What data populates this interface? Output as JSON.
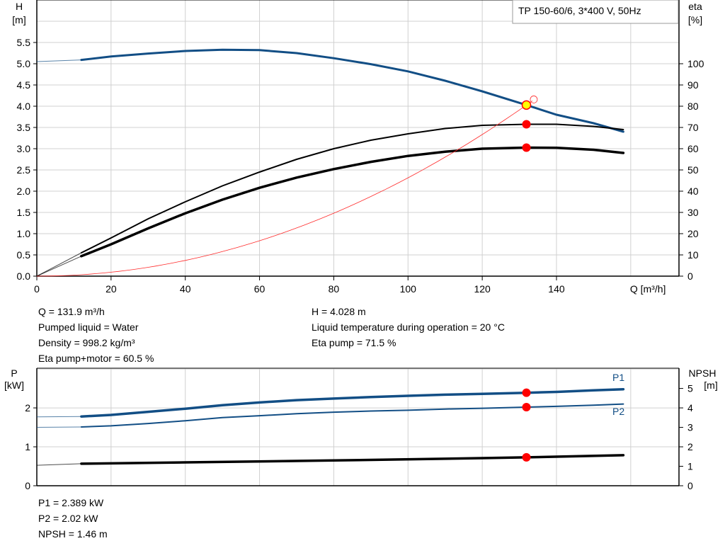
{
  "chart_data": [
    {
      "type": "line",
      "title": "TP 150-60/6, 3*400 V, 50Hz",
      "xlabel": "Q [m³/h]",
      "ylabel_left": [
        "H",
        "[m]"
      ],
      "ylabel_right": [
        "eta",
        "[%]"
      ],
      "xlim": [
        0,
        173
      ],
      "ylim_left": [
        0,
        6.5
      ],
      "ylim_right": [
        0,
        130
      ],
      "xticks": [
        "0",
        "20",
        "40",
        "60",
        "80",
        "100",
        "120",
        "140"
      ],
      "yticks_left": [
        "0.0",
        "0.5",
        "1.0",
        "1.5",
        "2.0",
        "2.5",
        "3.0",
        "3.5",
        "4.0",
        "4.5",
        "5.0",
        "5.5"
      ],
      "yticks_right": [
        "0",
        "10",
        "20",
        "30",
        "40",
        "50",
        "60",
        "70",
        "80",
        "90",
        "100"
      ],
      "grid": true,
      "series": [
        {
          "axis": "left",
          "color": "#124e85",
          "width": 3,
          "x": [
            12,
            20,
            30,
            40,
            50,
            60,
            70,
            80,
            90,
            100,
            110,
            120,
            131.9,
            140,
            150,
            158
          ],
          "y": [
            5.09,
            5.17,
            5.24,
            5.3,
            5.33,
            5.32,
            5.25,
            5.13,
            4.99,
            4.82,
            4.6,
            4.35,
            4.028,
            3.8,
            3.6,
            3.4
          ],
          "lead": {
            "x": [
              0,
              12
            ],
            "y": [
              5.05,
              5.09
            ]
          }
        },
        {
          "axis": "right",
          "color": "#000000",
          "width": 2,
          "x": [
            12,
            20,
            30,
            40,
            50,
            60,
            70,
            80,
            90,
            100,
            110,
            120,
            131.9,
            140,
            150,
            158
          ],
          "y": [
            11,
            18,
            27,
            35,
            42.5,
            49,
            55,
            60,
            64,
            67,
            69.5,
            71,
            71.5,
            71.5,
            70.5,
            69
          ],
          "lead": {
            "x": [
              0,
              12
            ],
            "y": [
              0,
              11
            ]
          }
        },
        {
          "axis": "right",
          "color": "#000000",
          "width": 3.5,
          "x": [
            12,
            20,
            30,
            40,
            50,
            60,
            70,
            80,
            90,
            100,
            110,
            120,
            131.9,
            140,
            150,
            158
          ],
          "y": [
            9.4,
            15,
            22.5,
            29.6,
            36,
            41.6,
            46.4,
            50.4,
            53.8,
            56.6,
            58.6,
            60,
            60.5,
            60.4,
            59.5,
            58
          ],
          "lead": {
            "x": [
              0,
              12
            ],
            "y": [
              0,
              9.4
            ]
          }
        },
        {
          "axis": "left",
          "color": "#ff2a2a",
          "width": 0.8,
          "system_curve_k": 0.0002315,
          "x_end": 133.5
        }
      ],
      "operating_point": {
        "Q": 131.9,
        "H": 4.028,
        "eta_pump": 71.5,
        "eta_total": 60.5
      }
    },
    {
      "type": "line",
      "ylabel_left": [
        "P",
        "[kW]"
      ],
      "ylabel_right": [
        "NPSH",
        "[m]"
      ],
      "xlim": [
        0,
        173
      ],
      "ylim_left": [
        0,
        3.02
      ],
      "ylim_right": [
        0,
        6.04
      ],
      "yticks_left": [
        "0",
        "1",
        "2"
      ],
      "yticks_right": [
        "0",
        "1",
        "2",
        "3",
        "4",
        "5"
      ],
      "grid": true,
      "series": [
        {
          "name": "P1",
          "axis": "left",
          "color": "#124e85",
          "width": 3.5,
          "x": [
            12,
            20,
            30,
            40,
            50,
            60,
            70,
            80,
            90,
            100,
            110,
            120,
            131.9,
            140,
            150,
            158
          ],
          "y": [
            1.78,
            1.82,
            1.9,
            1.98,
            2.07,
            2.14,
            2.2,
            2.24,
            2.28,
            2.31,
            2.34,
            2.36,
            2.389,
            2.41,
            2.45,
            2.48
          ],
          "lead": {
            "x": [
              0,
              12
            ],
            "y": [
              1.77,
              1.78
            ]
          }
        },
        {
          "name": "P2",
          "axis": "left",
          "color": "#124e85",
          "width": 2,
          "x": [
            12,
            20,
            30,
            40,
            50,
            60,
            70,
            80,
            90,
            100,
            110,
            120,
            131.9,
            140,
            150,
            158
          ],
          "y": [
            1.51,
            1.54,
            1.6,
            1.67,
            1.75,
            1.8,
            1.85,
            1.89,
            1.92,
            1.94,
            1.97,
            1.99,
            2.02,
            2.04,
            2.07,
            2.1
          ],
          "lead": {
            "x": [
              0,
              12
            ],
            "y": [
              1.5,
              1.51
            ]
          }
        },
        {
          "name": "NPSH",
          "axis": "right",
          "color": "#000000",
          "width": 3.5,
          "x": [
            12,
            40,
            80,
            120,
            131.9,
            158
          ],
          "y": [
            1.13,
            1.2,
            1.3,
            1.42,
            1.46,
            1.57
          ],
          "lead": {
            "x": [
              0,
              12
            ],
            "y": [
              1.05,
              1.13
            ]
          }
        }
      ],
      "operating_point": {
        "Q": 131.9,
        "P1": 2.389,
        "P2": 2.02,
        "NPSH": 1.46
      }
    }
  ],
  "info_top_left": [
    "Q = 131.9 m³/h",
    "Pumped liquid = Water",
    "Density = 998.2 kg/m³",
    "Eta pump+motor = 60.5 %"
  ],
  "info_top_right": [
    "H = 4.028 m",
    "Liquid temperature during operation = 20 °C",
    "Eta pump = 71.5 %"
  ],
  "info_bottom": [
    "P1 = 2.389 kW",
    "P2 = 2.02 kW",
    "NPSH = 1.46 m"
  ],
  "colors": {
    "grid": "#d0d0d0",
    "marker": "#ff0000",
    "op_marker": "#ffff00"
  }
}
